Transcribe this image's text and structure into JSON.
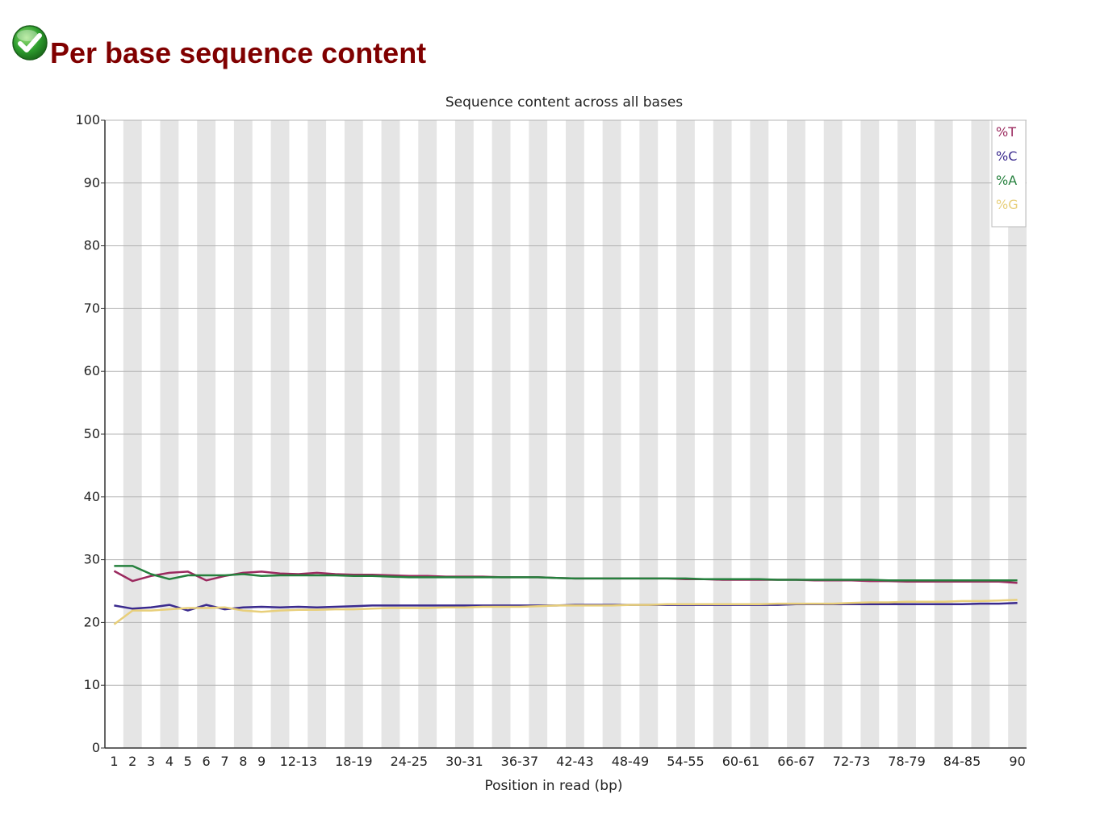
{
  "header": {
    "title": "Per base sequence content",
    "status_icon": "check-circle-icon",
    "status_color": "#2e9e2e"
  },
  "colors": {
    "title": "#800000",
    "band": "#e5e5e5",
    "grid": "#b4b4b4",
    "T": "#9b2a5f",
    "C": "#3a2a8e",
    "A": "#25803d",
    "G": "#e8cf7a"
  },
  "chart_data": {
    "type": "line",
    "title": "Sequence content across all bases",
    "xlabel": "Position in read (bp)",
    "ylabel": "",
    "ylim": [
      0,
      100
    ],
    "yticks": [
      0,
      10,
      20,
      30,
      40,
      50,
      60,
      70,
      80,
      90,
      100
    ],
    "grid": true,
    "legend_position": "top-right",
    "categories": [
      "1",
      "2",
      "3",
      "4",
      "5",
      "6",
      "7",
      "8",
      "9",
      "10-11",
      "12-13",
      "14-15",
      "16-17",
      "18-19",
      "20-21",
      "22-23",
      "24-25",
      "26-27",
      "28-29",
      "30-31",
      "32-33",
      "34-35",
      "36-37",
      "38-39",
      "40-41",
      "42-43",
      "44-45",
      "46-47",
      "48-49",
      "50-51",
      "52-53",
      "54-55",
      "56-57",
      "58-59",
      "60-61",
      "62-63",
      "64-65",
      "66-67",
      "68-69",
      "70-71",
      "72-73",
      "74-75",
      "76-77",
      "78-79",
      "80-81",
      "82-83",
      "84-85",
      "86-87",
      "88-89",
      "90"
    ],
    "tick_labels": [
      "1",
      "2",
      "3",
      "4",
      "5",
      "6",
      "7",
      "8",
      "9",
      "",
      "12-13",
      "",
      "",
      "18-19",
      "",
      "",
      "24-25",
      "",
      "",
      "30-31",
      "",
      "",
      "36-37",
      "",
      "",
      "42-43",
      "",
      "",
      "48-49",
      "",
      "",
      "54-55",
      "",
      "",
      "60-61",
      "",
      "",
      "66-67",
      "",
      "",
      "72-73",
      "",
      "",
      "78-79",
      "",
      "",
      "84-85",
      "",
      "",
      "90"
    ],
    "series": [
      {
        "name": "%T",
        "color": "#9b2a5f",
        "values": [
          28.2,
          26.6,
          27.4,
          27.9,
          28.1,
          26.7,
          27.4,
          27.9,
          28.1,
          27.8,
          27.7,
          27.9,
          27.7,
          27.6,
          27.6,
          27.5,
          27.4,
          27.4,
          27.3,
          27.3,
          27.3,
          27.2,
          27.2,
          27.2,
          27.1,
          27.0,
          27.0,
          27.0,
          27.0,
          27.0,
          27.0,
          26.9,
          26.9,
          26.8,
          26.8,
          26.8,
          26.8,
          26.8,
          26.7,
          26.7,
          26.7,
          26.6,
          26.6,
          26.5,
          26.5,
          26.5,
          26.5,
          26.5,
          26.5,
          26.3
        ]
      },
      {
        "name": "%C",
        "color": "#3a2a8e",
        "values": [
          22.7,
          22.2,
          22.4,
          22.8,
          21.9,
          22.8,
          22.1,
          22.4,
          22.5,
          22.4,
          22.5,
          22.4,
          22.5,
          22.6,
          22.7,
          22.7,
          22.7,
          22.7,
          22.7,
          22.7,
          22.7,
          22.7,
          22.7,
          22.7,
          22.7,
          22.8,
          22.8,
          22.8,
          22.8,
          22.8,
          22.8,
          22.8,
          22.8,
          22.8,
          22.8,
          22.8,
          22.8,
          22.9,
          22.9,
          22.9,
          22.9,
          22.9,
          22.9,
          22.9,
          22.9,
          22.9,
          22.9,
          23.0,
          23.0,
          23.1
        ]
      },
      {
        "name": "%A",
        "color": "#25803d",
        "values": [
          29.0,
          29.0,
          27.7,
          26.9,
          27.5,
          27.5,
          27.5,
          27.7,
          27.4,
          27.5,
          27.5,
          27.5,
          27.5,
          27.4,
          27.4,
          27.3,
          27.2,
          27.2,
          27.2,
          27.2,
          27.2,
          27.2,
          27.2,
          27.2,
          27.1,
          27.0,
          27.0,
          27.0,
          27.0,
          27.0,
          27.0,
          27.0,
          26.9,
          26.9,
          26.9,
          26.9,
          26.8,
          26.8,
          26.8,
          26.8,
          26.8,
          26.8,
          26.7,
          26.7,
          26.7,
          26.7,
          26.7,
          26.7,
          26.7,
          26.7
        ]
      },
      {
        "name": "%G",
        "color": "#e8cf7a",
        "values": [
          19.7,
          21.9,
          21.9,
          22.1,
          22.3,
          22.3,
          22.4,
          21.9,
          21.7,
          21.9,
          22.0,
          22.0,
          22.1,
          22.1,
          22.2,
          22.3,
          22.3,
          22.3,
          22.4,
          22.4,
          22.5,
          22.5,
          22.5,
          22.6,
          22.7,
          22.7,
          22.7,
          22.7,
          22.8,
          22.8,
          22.9,
          22.9,
          22.9,
          22.9,
          22.9,
          22.9,
          23.0,
          23.0,
          23.0,
          23.0,
          23.1,
          23.2,
          23.2,
          23.3,
          23.3,
          23.3,
          23.4,
          23.4,
          23.5,
          23.6
        ]
      }
    ]
  }
}
